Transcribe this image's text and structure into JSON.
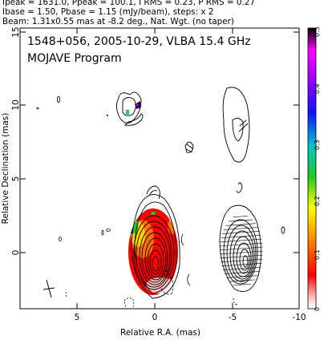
{
  "header": {
    "line1": "Ipeak = 1631.0, Ppeak = 100.1, I RMS = 0.23, P RMS = 0.27",
    "line2": "Ibase = 1.50, Pbase = 1.15 (mJy/beam), steps: x 2",
    "line3": "Beam: 1.31x0.55 mas at -8.2 deg., Nat. Wgt. (no taper)"
  },
  "plot": {
    "title": "1548+056, 2005-10-29, VLBA 15.4 GHz",
    "subtitle": "MOJAVE Program",
    "xlabel": "Relative R.A. (mas)",
    "ylabel": "Relative Declination (mas)",
    "xticks": [
      "5",
      "0",
      "-5",
      "-10"
    ],
    "yticks": [
      "15",
      "10",
      "5",
      "0"
    ],
    "colorbar_ticks": [
      "0",
      "0.1",
      "0.2",
      "0.3",
      "0.4",
      "0.5"
    ]
  }
}
